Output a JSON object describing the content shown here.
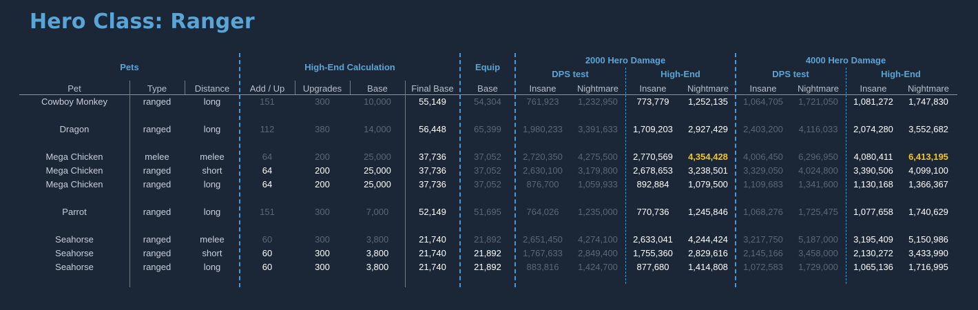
{
  "title": "Hero Class: Ranger",
  "groups": {
    "pets": "Pets",
    "high_end_calc": "High-End Calculation",
    "equip": "Equip",
    "dmg2000": "2000 Hero Damage",
    "dmg4000": "4000 Hero Damage"
  },
  "subgroups": {
    "dps_test_2000": "DPS test",
    "high_end_2000": "High-End",
    "dps_test_4000": "DPS test",
    "high_end_4000": "High-End"
  },
  "columns": [
    "Pet",
    "Type",
    "Distance",
    "Add / Up",
    "Upgrades",
    "Base",
    "Final Base",
    "Base",
    "Insane",
    "Nightmare",
    "Insane",
    "Nightmare",
    "Insane",
    "Nightmare",
    "Insane",
    "Nightmare"
  ],
  "rows": [
    [
      "Cowboy Monkey",
      "ranged",
      "long",
      "151",
      "300",
      "10,000",
      "55,149",
      "54,304",
      "761,923",
      "1,232,950",
      "773,779",
      "1,252,135",
      "1,064,705",
      "1,721,050",
      "1,081,272",
      "1,747,830"
    ],
    [
      "Dragon",
      "ranged",
      "long",
      "112",
      "380",
      "14,000",
      "56,448",
      "65,399",
      "1,980,233",
      "3,391,633",
      "1,709,203",
      "2,927,429",
      "2,403,200",
      "4,116,033",
      "2,074,280",
      "3,552,682"
    ],
    [
      "Mega Chicken",
      "melee",
      "melee",
      "64",
      "200",
      "25,000",
      "37,736",
      "37,052",
      "2,720,350",
      "4,275,500",
      "2,770,569",
      "4,354,428",
      "4,006,450",
      "6,296,950",
      "4,080,411",
      "6,413,195"
    ],
    [
      "Mega Chicken",
      "ranged",
      "short",
      "64",
      "200",
      "25,000",
      "37,736",
      "37,052",
      "2,630,100",
      "3,179,800",
      "2,678,653",
      "3,238,501",
      "3,329,050",
      "4,024,800",
      "3,390,506",
      "4,099,100"
    ],
    [
      "Mega Chicken",
      "ranged",
      "long",
      "64",
      "200",
      "25,000",
      "37,736",
      "37,052",
      "876,700",
      "1,059,933",
      "892,884",
      "1,079,500",
      "1,109,683",
      "1,341,600",
      "1,130,168",
      "1,366,367"
    ],
    [
      "Parrot",
      "ranged",
      "long",
      "151",
      "300",
      "7,000",
      "52,149",
      "51,695",
      "764,026",
      "1,235,000",
      "770,736",
      "1,245,846",
      "1,068,276",
      "1,725,475",
      "1,077,658",
      "1,740,629"
    ],
    [
      "Seahorse",
      "ranged",
      "melee",
      "60",
      "300",
      "3,800",
      "21,740",
      "21,892",
      "2,651,450",
      "4,274,100",
      "2,633,041",
      "4,244,424",
      "3,217,750",
      "5,187,000",
      "3,195,409",
      "5,150,986"
    ],
    [
      "Seahorse",
      "ranged",
      "short",
      "60",
      "300",
      "3,800",
      "21,740",
      "21,892",
      "1,767,633",
      "2,849,400",
      "1,755,360",
      "2,829,616",
      "2,145,166",
      "3,458,000",
      "2,130,272",
      "3,433,990"
    ],
    [
      "Seahorse",
      "ranged",
      "long",
      "60",
      "300",
      "3,800",
      "21,740",
      "21,892",
      "883,816",
      "1,424,700",
      "877,680",
      "1,414,808",
      "1,072,583",
      "1,729,000",
      "1,065,136",
      "1,716,995"
    ]
  ],
  "highlights": {
    "dim_cells": [
      [
        0,
        3
      ],
      [
        0,
        4
      ],
      [
        0,
        5
      ],
      [
        0,
        7
      ],
      [
        0,
        8
      ],
      [
        0,
        9
      ],
      [
        0,
        12
      ],
      [
        0,
        13
      ],
      [
        1,
        3
      ],
      [
        1,
        4
      ],
      [
        1,
        5
      ],
      [
        1,
        7
      ],
      [
        1,
        8
      ],
      [
        1,
        9
      ],
      [
        1,
        12
      ],
      [
        1,
        13
      ],
      [
        2,
        3
      ],
      [
        2,
        4
      ],
      [
        2,
        5
      ],
      [
        2,
        7
      ],
      [
        2,
        8
      ],
      [
        2,
        9
      ],
      [
        2,
        12
      ],
      [
        2,
        13
      ],
      [
        3,
        7
      ],
      [
        3,
        8
      ],
      [
        3,
        9
      ],
      [
        3,
        12
      ],
      [
        3,
        13
      ],
      [
        4,
        7
      ],
      [
        4,
        8
      ],
      [
        4,
        9
      ],
      [
        4,
        12
      ],
      [
        4,
        13
      ],
      [
        5,
        3
      ],
      [
        5,
        4
      ],
      [
        5,
        5
      ],
      [
        5,
        7
      ],
      [
        5,
        8
      ],
      [
        5,
        9
      ],
      [
        5,
        12
      ],
      [
        5,
        13
      ],
      [
        6,
        3
      ],
      [
        6,
        4
      ],
      [
        6,
        5
      ],
      [
        6,
        7
      ],
      [
        6,
        8
      ],
      [
        6,
        9
      ],
      [
        6,
        12
      ],
      [
        6,
        13
      ],
      [
        7,
        8
      ],
      [
        7,
        9
      ],
      [
        7,
        12
      ],
      [
        7,
        13
      ],
      [
        8,
        8
      ],
      [
        8,
        9
      ],
      [
        8,
        12
      ],
      [
        8,
        13
      ]
    ],
    "gold_cells": [
      [
        2,
        11
      ],
      [
        2,
        15
      ]
    ],
    "gold_color": "#f5c518",
    "dim_color": "#5d6874",
    "accent_color": "#5aa5d8"
  }
}
